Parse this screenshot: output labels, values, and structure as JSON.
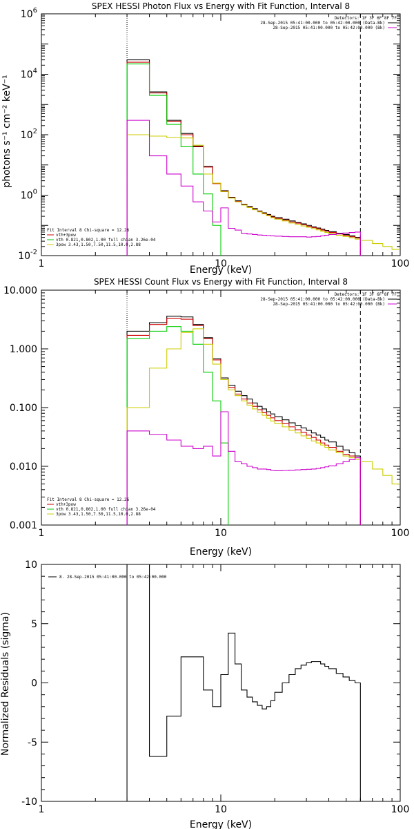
{
  "chart_data": [
    {
      "id": "photon",
      "type": "line",
      "title": "SPEX HESSI Photon Flux vs Energy with Fit Function, Interval 8",
      "xlabel": "Energy (keV)",
      "ylabel": "photons s⁻¹ cm⁻² keV⁻¹",
      "xscale": "log",
      "yscale": "log",
      "xlim": [
        1,
        100
      ],
      "ylim": [
        0.01,
        1000000
      ],
      "xticks": [
        {
          "value": 1,
          "label": "1"
        },
        {
          "value": 10,
          "label": "10"
        },
        {
          "value": 100,
          "label": "100"
        }
      ],
      "yticks": [
        {
          "value": 0.01,
          "base": "10",
          "exp": "-2"
        },
        {
          "value": 1,
          "base": "10",
          "exp": "0"
        },
        {
          "value": 100,
          "base": "10",
          "exp": "2"
        },
        {
          "value": 10000,
          "base": "10",
          "exp": "4"
        },
        {
          "value": 1000000,
          "base": "10",
          "exp": "6"
        }
      ],
      "vlines": [
        {
          "x": 3,
          "style": "dotted"
        },
        {
          "x": 60,
          "style": "dashed"
        }
      ],
      "legend_top": {
        "placement": "top-right",
        "header": "Detectors: 1F 3F 6F 8F 7F",
        "entries": [
          {
            "text": "28-Sep-2015 05:41:00.000 to 05:42:00.000 (Data-Bk)",
            "color": "#000000"
          },
          {
            "text": "28-Sep-2015 05:41:00.000 to 05:42:00.000 (Bk)",
            "color": "#cc00cc"
          }
        ]
      },
      "legend_bottom": {
        "placement": "bottom-left",
        "header": "Fit Interval  8    Chi-square = 12.26",
        "entries": [
          {
            "text": "vth+3pow",
            "color": "#cc0000"
          },
          {
            "text": "vth 0.821,0.802,1.00  full chian 3.26e-04",
            "color": "#00cc00"
          },
          {
            "text": "3pow 3.43,1.50,7.50,11.5,10.0,2.88",
            "color": "#cccc00"
          }
        ]
      },
      "series": [
        {
          "color": "#000000",
          "edges": [
            3,
            4,
            5,
            6,
            7,
            8,
            9,
            10,
            11,
            12,
            13,
            14,
            15,
            16,
            17,
            18,
            19,
            20,
            22,
            24,
            26,
            28,
            30,
            32,
            34,
            36,
            38,
            40,
            44,
            48,
            52,
            56,
            60
          ],
          "values": [
            30000,
            2600,
            300,
            110,
            42,
            9,
            2.5,
            1.4,
            0.85,
            0.65,
            0.5,
            0.42,
            0.36,
            0.3,
            0.26,
            0.23,
            0.2,
            0.18,
            0.16,
            0.14,
            0.125,
            0.112,
            0.1,
            0.09,
            0.082,
            0.075,
            0.068,
            0.062,
            0.055,
            0.05,
            0.045,
            0.04
          ]
        },
        {
          "color": "#cc0000",
          "edges": [
            3,
            4,
            5,
            6,
            7,
            8,
            9,
            10,
            11,
            12,
            13,
            14,
            15,
            16,
            17,
            18,
            19,
            20,
            22,
            24,
            26,
            28,
            30,
            32,
            34,
            36,
            38,
            40,
            44,
            48,
            52,
            56,
            60
          ],
          "values": [
            25000,
            2400,
            280,
            100,
            40,
            8.5,
            2.4,
            1.35,
            0.82,
            0.62,
            0.48,
            0.4,
            0.34,
            0.29,
            0.25,
            0.22,
            0.19,
            0.17,
            0.15,
            0.13,
            0.118,
            0.105,
            0.094,
            0.085,
            0.077,
            0.07,
            0.064,
            0.058,
            0.052,
            0.047,
            0.042,
            0.038
          ]
        },
        {
          "color": "#00cc00",
          "edges": [
            3,
            4,
            5,
            6,
            7,
            8,
            9,
            10
          ],
          "values": [
            22000,
            2000,
            220,
            40,
            5,
            1.1,
            0.1
          ]
        },
        {
          "color": "#cccc00",
          "edges": [
            3,
            4,
            5,
            6,
            7,
            8,
            9,
            10,
            11,
            12,
            13,
            14,
            15,
            16,
            17,
            18,
            19,
            20,
            22,
            24,
            26,
            28,
            30,
            32,
            34,
            36,
            38,
            40,
            44,
            48,
            52,
            56,
            60,
            70,
            80,
            90,
            100
          ],
          "values": [
            100,
            90,
            80,
            78,
            45,
            5,
            2.5,
            1.3,
            0.8,
            0.6,
            0.47,
            0.39,
            0.33,
            0.28,
            0.24,
            0.21,
            0.18,
            0.16,
            0.14,
            0.12,
            0.108,
            0.096,
            0.086,
            0.078,
            0.071,
            0.064,
            0.058,
            0.053,
            0.047,
            0.043,
            0.039,
            0.035,
            0.032,
            0.025,
            0.02,
            0.016
          ]
        },
        {
          "color": "#cc00cc",
          "edges": [
            3,
            4,
            5,
            6,
            7,
            8,
            9,
            10,
            11,
            12,
            13,
            14,
            15,
            16,
            17,
            18,
            19,
            20,
            22,
            24,
            26,
            28,
            30,
            32,
            34,
            36,
            38,
            40,
            44,
            48,
            52,
            56,
            60
          ],
          "values": [
            300,
            20,
            5,
            2,
            0.6,
            0.3,
            0.13,
            0.38,
            0.08,
            0.07,
            0.055,
            0.052,
            0.05,
            0.048,
            0.047,
            0.046,
            0.045,
            0.044,
            0.043,
            0.042,
            0.042,
            0.042,
            0.041,
            0.042,
            0.043,
            0.045,
            0.047,
            0.05,
            0.053,
            0.056,
            0.058,
            0.06
          ]
        }
      ]
    },
    {
      "id": "count",
      "type": "line",
      "title": "SPEX HESSI Count Flux vs Energy with Fit Function, Interval 8",
      "xlabel": "Energy (keV)",
      "ylabel": "",
      "xscale": "log",
      "yscale": "log",
      "xlim": [
        1,
        100
      ],
      "ylim": [
        0.001,
        10
      ],
      "xticks": [
        {
          "value": 1,
          "label": "1"
        },
        {
          "value": 10,
          "label": "10"
        },
        {
          "value": 100,
          "label": "100"
        }
      ],
      "yticks": [
        {
          "value": 0.001,
          "label": "0.001"
        },
        {
          "value": 0.01,
          "label": "0.010"
        },
        {
          "value": 0.1,
          "label": "0.100"
        },
        {
          "value": 1,
          "label": "1.000"
        },
        {
          "value": 10,
          "label": "10.000"
        }
      ],
      "vlines": [
        {
          "x": 3,
          "style": "dotted"
        },
        {
          "x": 60,
          "style": "dashed"
        }
      ],
      "legend_top": {
        "placement": "top-right",
        "header": "Detectors: 1F 3F 6F 8F 7F",
        "entries": [
          {
            "text": "28-Sep-2015 05:41:00.000 to 05:42:00.000 (Data-Bk)",
            "color": "#000000"
          },
          {
            "text": "28-Sep-2015 05:41:00.000 to 05:42:00.000 (Bk)",
            "color": "#cc00cc"
          }
        ]
      },
      "legend_bottom": {
        "placement": "bottom-left",
        "header": "Fit Interval  8    Chi-square = 12.26",
        "entries": [
          {
            "text": "vth+3pow",
            "color": "#cc0000"
          },
          {
            "text": "vth 0.821,0.802,1.00  full chian 3.26e-04",
            "color": "#00cc00"
          },
          {
            "text": "3pow 3.43,1.50,7.50,11.5,10.0,2.88",
            "color": "#cccc00"
          }
        ]
      },
      "series": [
        {
          "color": "#000000",
          "edges": [
            3,
            4,
            5,
            6,
            7,
            8,
            9,
            10,
            11,
            12,
            13,
            14,
            15,
            16,
            17,
            18,
            19,
            20,
            22,
            24,
            26,
            28,
            30,
            32,
            34,
            36,
            38,
            40,
            44,
            48,
            52,
            56,
            60
          ],
          "values": [
            2.0,
            2.8,
            3.6,
            3.5,
            2.6,
            1.55,
            0.68,
            0.32,
            0.24,
            0.19,
            0.16,
            0.14,
            0.12,
            0.105,
            0.095,
            0.085,
            0.078,
            0.07,
            0.062,
            0.055,
            0.05,
            0.045,
            0.041,
            0.037,
            0.034,
            0.031,
            0.028,
            0.026,
            0.022,
            0.019,
            0.017,
            0.015
          ]
        },
        {
          "color": "#cc0000",
          "edges": [
            3,
            4,
            5,
            6,
            7,
            8,
            9,
            10,
            11,
            12,
            13,
            14,
            15,
            16,
            17,
            18,
            19,
            20,
            22,
            24,
            26,
            28,
            30,
            32,
            34,
            36,
            38,
            40,
            44,
            48,
            52,
            56,
            60
          ],
          "values": [
            1.7,
            2.6,
            3.3,
            3.2,
            2.5,
            1.5,
            0.65,
            0.3,
            0.22,
            0.17,
            0.14,
            0.12,
            0.105,
            0.092,
            0.082,
            0.074,
            0.067,
            0.06,
            0.053,
            0.047,
            0.042,
            0.038,
            0.034,
            0.031,
            0.028,
            0.025,
            0.023,
            0.021,
            0.018,
            0.016,
            0.015,
            0.014
          ]
        },
        {
          "color": "#00cc00",
          "edges": [
            3,
            4,
            5,
            6,
            7,
            8,
            9,
            10,
            11
          ],
          "values": [
            1.5,
            2.0,
            2.4,
            2.0,
            1.2,
            0.4,
            0.13,
            0.025
          ]
        },
        {
          "color": "#cccc00",
          "edges": [
            3,
            4,
            5,
            6,
            7,
            8,
            9,
            10,
            11,
            12,
            13,
            14,
            15,
            16,
            17,
            18,
            19,
            20,
            22,
            24,
            26,
            28,
            30,
            32,
            34,
            36,
            38,
            40,
            44,
            48,
            52,
            56,
            60,
            70,
            80,
            90,
            100
          ],
          "values": [
            0.1,
            0.47,
            1.0,
            1.9,
            2.2,
            1.2,
            0.55,
            0.3,
            0.2,
            0.16,
            0.13,
            0.11,
            0.095,
            0.083,
            0.074,
            0.066,
            0.059,
            0.053,
            0.047,
            0.041,
            0.037,
            0.033,
            0.03,
            0.027,
            0.025,
            0.023,
            0.021,
            0.019,
            0.017,
            0.015,
            0.014,
            0.013,
            0.012,
            0.009,
            0.007,
            0.005
          ]
        },
        {
          "color": "#cc00cc",
          "edges": [
            3,
            4,
            5,
            6,
            7,
            8,
            9,
            10,
            11,
            12,
            13,
            14,
            15,
            16,
            17,
            18,
            19,
            20,
            22,
            24,
            26,
            28,
            30,
            32,
            34,
            36,
            38,
            40,
            44,
            48,
            52,
            56,
            60
          ],
          "values": [
            0.04,
            0.035,
            0.028,
            0.022,
            0.02,
            0.022,
            0.015,
            0.085,
            0.018,
            0.012,
            0.011,
            0.01,
            0.0095,
            0.009,
            0.009,
            0.0088,
            0.0085,
            0.0084,
            0.0085,
            0.0086,
            0.0087,
            0.0088,
            0.0089,
            0.009,
            0.0092,
            0.0095,
            0.0098,
            0.0102,
            0.011,
            0.012,
            0.013,
            0.014
          ]
        }
      ]
    },
    {
      "id": "residuals",
      "type": "line",
      "title": "",
      "xlabel": "Energy (keV)",
      "ylabel": "Normalized Residuals (sigma)",
      "xscale": "log",
      "yscale": "linear",
      "xlim": [
        1,
        100
      ],
      "ylim": [
        -10,
        10
      ],
      "xticks": [
        {
          "value": 1,
          "label": "1"
        },
        {
          "value": 10,
          "label": "10"
        },
        {
          "value": 100,
          "label": "100"
        }
      ],
      "yticks": [
        {
          "value": -10,
          "label": "-10"
        },
        {
          "value": -5,
          "label": "-5"
        },
        {
          "value": 0,
          "label": "0"
        },
        {
          "value": 5,
          "label": "5"
        },
        {
          "value": 10,
          "label": "10"
        }
      ],
      "legend_top": {
        "placement": "top-left",
        "entries": [
          {
            "text": "8. 28-Sep-2015 05:41:00.000 to 05:42:00.000",
            "color": "#000000"
          }
        ]
      },
      "series": [
        {
          "color": "#000000",
          "edges": [
            3,
            4,
            5,
            6,
            7,
            8,
            9,
            10,
            11,
            12,
            13,
            14,
            15,
            16,
            17,
            18,
            19,
            20,
            22,
            24,
            26,
            28,
            30,
            32,
            34,
            36,
            38,
            40,
            44,
            48,
            52,
            56,
            60
          ],
          "values": [
            10,
            -6.2,
            -2.8,
            2.2,
            2.2,
            -0.6,
            -2.0,
            0.7,
            4.2,
            1.6,
            -0.6,
            -1.2,
            -1.6,
            -1.9,
            -2.2,
            -2.0,
            -1.5,
            -0.8,
            0.0,
            0.7,
            1.2,
            1.5,
            1.7,
            1.8,
            1.8,
            1.6,
            1.4,
            1.2,
            0.8,
            0.5,
            0.2,
            0.0
          ]
        }
      ]
    }
  ]
}
